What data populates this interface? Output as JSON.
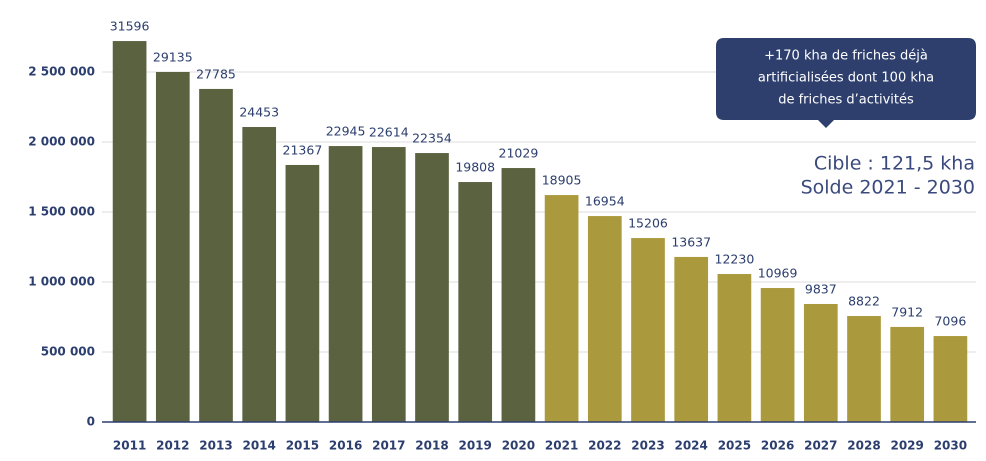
{
  "chart_data": {
    "type": "bar",
    "categories": [
      "2011",
      "2012",
      "2013",
      "2014",
      "2015",
      "2016",
      "2017",
      "2018",
      "2019",
      "2020",
      "2021",
      "2022",
      "2023",
      "2024",
      "2025",
      "2026",
      "2027",
      "2028",
      "2029",
      "2030"
    ],
    "values": [
      2721000,
      2500000,
      2379000,
      2107000,
      1836000,
      1971000,
      1964000,
      1921000,
      1714000,
      1814000,
      1621000,
      1471000,
      1314000,
      1179000,
      1057000,
      957000,
      843000,
      757000,
      679000,
      614000
    ],
    "bar_labels": [
      "31596",
      "29135",
      "27785",
      "24453",
      "21367",
      "22945",
      "22614",
      "22354",
      "19808",
      "21029",
      "18905",
      "16954",
      "15206",
      "13637",
      "12230",
      "10969",
      "9837",
      "8822",
      "7912",
      "7096"
    ],
    "colors": [
      "#5b6240",
      "#5b6240",
      "#5b6240",
      "#5b6240",
      "#5b6240",
      "#5b6240",
      "#5b6240",
      "#5b6240",
      "#5b6240",
      "#5b6240",
      "#ab9a3d",
      "#ab9a3d",
      "#ab9a3d",
      "#ab9a3d",
      "#ab9a3d",
      "#ab9a3d",
      "#ab9a3d",
      "#ab9a3d",
      "#ab9a3d",
      "#ab9a3d"
    ],
    "ylim": [
      0,
      2750000
    ],
    "yticks": [
      0,
      {
        "value": 500000,
        "label": "500 000"
      },
      {
        "value": 1000000,
        "label": "1 000 000"
      },
      {
        "value": 1500000,
        "label": "1 500 000"
      },
      {
        "value": 2000000,
        "label": "2 000 000"
      },
      {
        "value": 2500000,
        "label": "2 500 000"
      }
    ],
    "grid": true,
    "callout": [
      "+170 kha de friches déjà",
      "artificialisées dont 100 kha",
      "de friches d’activités"
    ],
    "target": [
      "Cible : 121,5 kha",
      "Solde 2021 - 2030"
    ]
  }
}
